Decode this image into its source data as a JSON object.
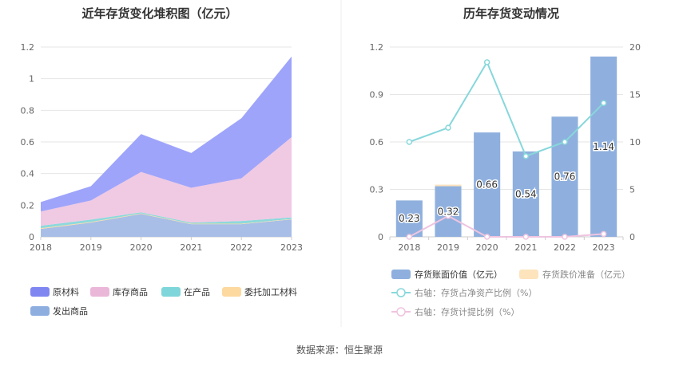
{
  "source_text": "数据来源：恒生聚源",
  "chart_data": [
    {
      "type": "area",
      "stacked": true,
      "title": "近年存货变化堆积图（亿元）",
      "x": [
        "2018",
        "2019",
        "2020",
        "2021",
        "2022",
        "2023"
      ],
      "ylim": [
        0,
        1.2
      ],
      "yticks": [
        "0",
        "0.2",
        "0.4",
        "0.6",
        "0.8",
        "1",
        "1.2"
      ],
      "series": [
        {
          "name": "发出商品",
          "color": "#a8bee6",
          "values": [
            0.05,
            0.09,
            0.145,
            0.08,
            0.08,
            0.11
          ]
        },
        {
          "name": "委托加工材料",
          "color": "#fcd9a3",
          "values": [
            0.005,
            0.004,
            0.003,
            0.003,
            0.003,
            0.003
          ]
        },
        {
          "name": "在产品",
          "color": "#8dd9dc",
          "values": [
            0.015,
            0.015,
            0.007,
            0.007,
            0.017,
            0.01
          ]
        },
        {
          "name": "库存商品",
          "color": "#f0c9e3",
          "values": [
            0.09,
            0.121,
            0.255,
            0.22,
            0.27,
            0.507
          ]
        },
        {
          "name": "原材料",
          "color": "#9ea4fa",
          "values": [
            0.06,
            0.09,
            0.24,
            0.22,
            0.38,
            0.51
          ]
        }
      ],
      "legend": [
        {
          "name": "原材料",
          "color": "#7f86f2"
        },
        {
          "name": "库存商品",
          "color": "#ebb7d9"
        },
        {
          "name": "在产品",
          "color": "#7fd6da"
        },
        {
          "name": "委托加工材料",
          "color": "#fdd9a0"
        },
        {
          "name": "发出商品",
          "color": "#8eaee0"
        }
      ]
    },
    {
      "type": "bar+line",
      "title": "历年存货变动情况",
      "x": [
        "2018",
        "2019",
        "2020",
        "2021",
        "2022",
        "2023"
      ],
      "ylim_left": [
        0,
        1.2
      ],
      "yticks_left": [
        "0",
        "0.3",
        "0.6",
        "0.9",
        "1.2"
      ],
      "ylim_right": [
        0,
        20
      ],
      "yticks_right": [
        "0",
        "5",
        "10",
        "15",
        "20"
      ],
      "bars": {
        "name": "存货账面价值（亿元）",
        "color": "#8fb0de",
        "values": [
          0.23,
          0.32,
          0.66,
          0.54,
          0.76,
          1.14
        ],
        "labels": [
          "0.23",
          "0.32",
          "0.66",
          "0.54",
          "0.76",
          "1.14"
        ]
      },
      "bars_stack": {
        "name": "存货跌价准备（亿元）",
        "color": "#fde4bd",
        "values": [
          0,
          0.01,
          0,
          0,
          0,
          0
        ]
      },
      "lines": [
        {
          "name": "右轴：存货占净资产比例（%）",
          "color": "#87d7db",
          "values": [
            10.0,
            11.5,
            18.4,
            8.5,
            10.0,
            14.1
          ]
        },
        {
          "name": "右轴：存货计提比例（%）",
          "color": "#efc4e0",
          "values": [
            0,
            2.2,
            0,
            0,
            0,
            0.3
          ]
        }
      ]
    }
  ]
}
